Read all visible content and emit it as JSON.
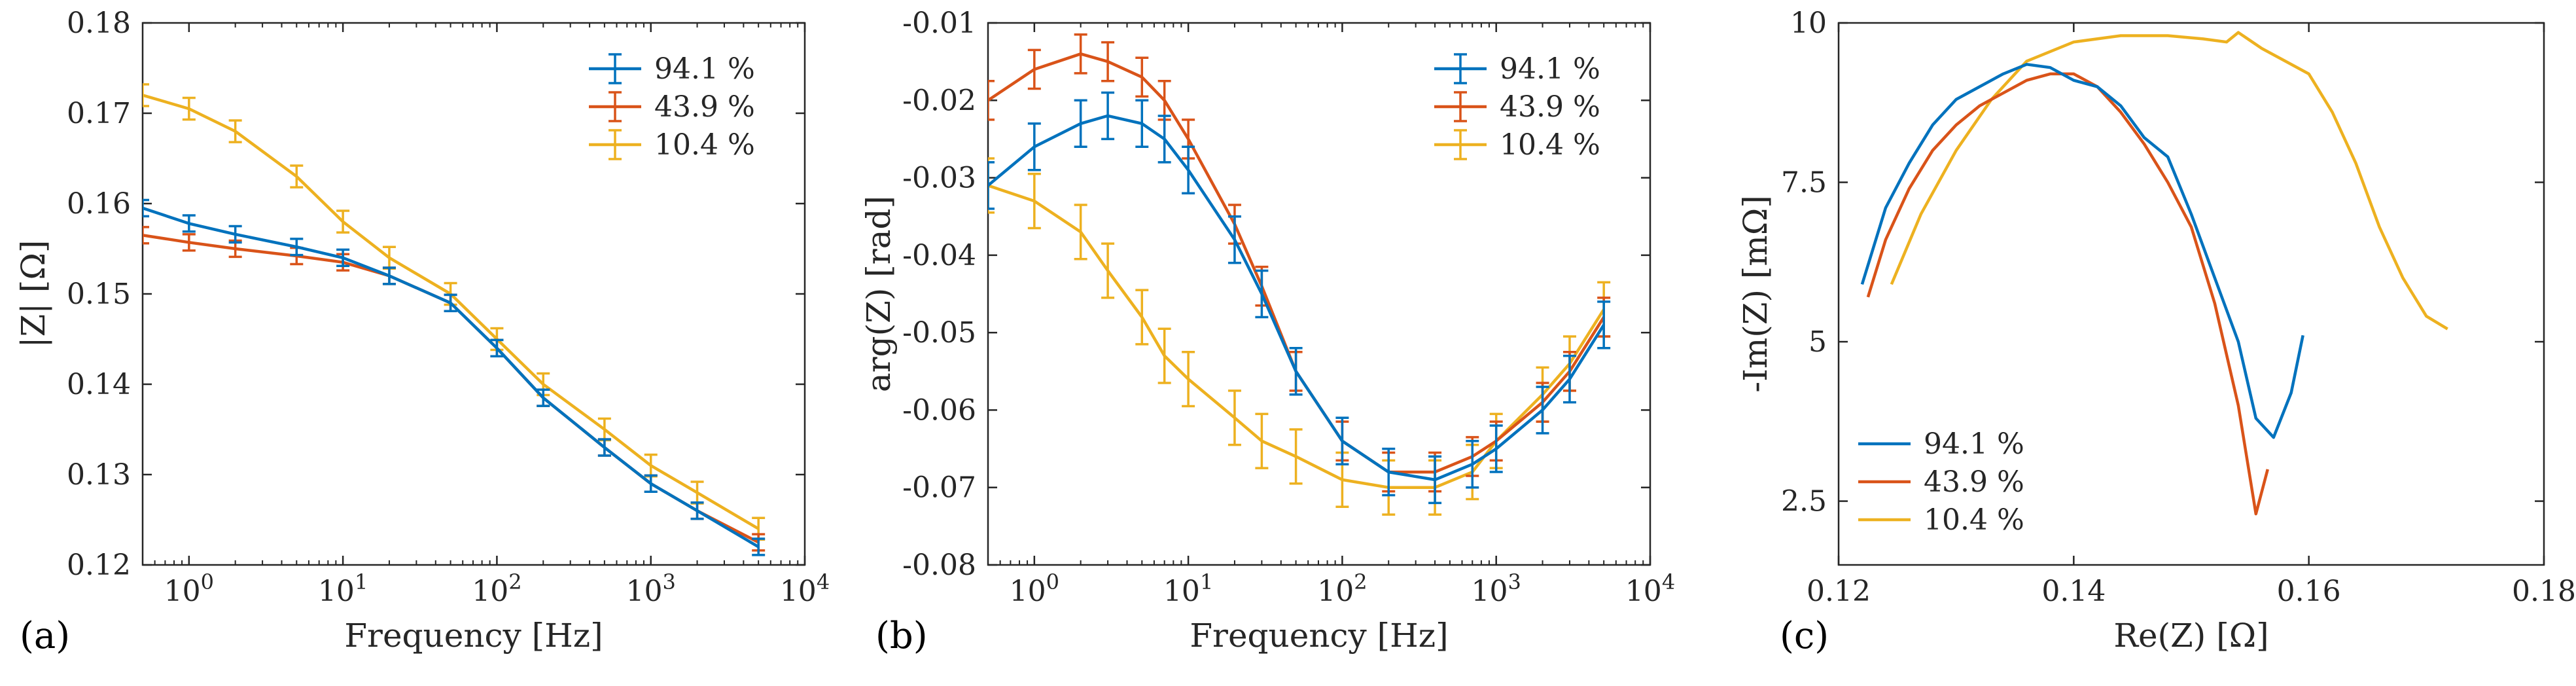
{
  "colors": {
    "blue": "#0072BD",
    "orange": "#D95319",
    "yellow": "#EDB120",
    "axis": "#262626"
  },
  "panels": [
    {
      "letter": "(a)",
      "xlabel": "Frequency [Hz]",
      "ylabel": "|Z| [Ω]"
    },
    {
      "letter": "(b)",
      "xlabel": "Frequency [Hz]",
      "ylabel": "arg(Z) [rad]"
    },
    {
      "letter": "(c)",
      "xlabel": "Re(Z) [Ω]",
      "ylabel": "-Im(Z) [mΩ]"
    }
  ],
  "legend_labels": [
    "94.1 %",
    "43.9 %",
    "10.4 %"
  ],
  "chart_data": [
    {
      "type": "line",
      "xscale": "log",
      "xlim": [
        0.5,
        10000
      ],
      "ylim": [
        0.12,
        0.18
      ],
      "xticks": [
        "10^0",
        "10^1",
        "10^2",
        "10^3",
        "10^4"
      ],
      "yticks": [
        "0.12",
        "0.13",
        "0.14",
        "0.15",
        "0.16",
        "0.17",
        "0.18"
      ],
      "xlabel": "Frequency [Hz]",
      "ylabel": "|Z| [Ω]",
      "legend": "top-right",
      "error_bars": true,
      "series": [
        {
          "name": "94.1 %",
          "x": [
            0.5,
            1,
            2,
            5,
            10,
            20,
            50,
            100,
            200,
            500,
            1000,
            2000,
            5000
          ],
          "y": [
            0.1595,
            0.1578,
            0.1566,
            0.1552,
            0.154,
            0.152,
            0.149,
            0.144,
            0.1385,
            0.133,
            0.129,
            0.126,
            0.122
          ],
          "err": 0.0009
        },
        {
          "name": "43.9 %",
          "x": [
            0.5,
            1,
            2,
            5,
            10,
            20,
            50,
            100,
            200,
            500,
            1000,
            2000,
            5000
          ],
          "y": [
            0.1565,
            0.1557,
            0.155,
            0.1542,
            0.1535,
            0.152,
            0.149,
            0.144,
            0.1385,
            0.133,
            0.129,
            0.126,
            0.1225
          ],
          "err": 0.0009
        },
        {
          "name": "10.4 %",
          "x": [
            0.5,
            1,
            2,
            5,
            10,
            20,
            50,
            100,
            200,
            500,
            1000,
            2000,
            5000
          ],
          "y": [
            0.172,
            0.1705,
            0.168,
            0.163,
            0.158,
            0.154,
            0.15,
            0.145,
            0.14,
            0.135,
            0.131,
            0.128,
            0.124
          ],
          "err": 0.0012
        }
      ]
    },
    {
      "type": "line",
      "xscale": "log",
      "xlim": [
        0.5,
        10000
      ],
      "ylim": [
        -0.08,
        -0.01
      ],
      "xticks": [
        "10^0",
        "10^1",
        "10^2",
        "10^3",
        "10^4"
      ],
      "yticks": [
        "-0.08",
        "-0.07",
        "-0.06",
        "-0.05",
        "-0.04",
        "-0.03",
        "-0.02",
        "-0.01"
      ],
      "xlabel": "Frequency [Hz]",
      "ylabel": "arg(Z) [rad]",
      "legend": "top-right",
      "error_bars": true,
      "series": [
        {
          "name": "94.1 %",
          "x": [
            0.5,
            1,
            2,
            3,
            5,
            7,
            10,
            20,
            30,
            50,
            100,
            200,
            400,
            700,
            1000,
            2000,
            3000,
            5000
          ],
          "y": [
            -0.031,
            -0.026,
            -0.023,
            -0.022,
            -0.023,
            -0.025,
            -0.029,
            -0.038,
            -0.045,
            -0.055,
            -0.064,
            -0.068,
            -0.069,
            -0.067,
            -0.065,
            -0.06,
            -0.056,
            -0.049
          ],
          "err": 0.003
        },
        {
          "name": "43.9 %",
          "x": [
            0.5,
            1,
            2,
            3,
            5,
            7,
            10,
            20,
            30,
            50,
            100,
            200,
            400,
            700,
            1000,
            2000,
            3000,
            5000
          ],
          "y": [
            -0.02,
            -0.016,
            -0.014,
            -0.015,
            -0.017,
            -0.02,
            -0.025,
            -0.036,
            -0.044,
            -0.055,
            -0.064,
            -0.068,
            -0.068,
            -0.066,
            -0.064,
            -0.059,
            -0.055,
            -0.048
          ],
          "err": 0.0025
        },
        {
          "name": "10.4 %",
          "x": [
            0.5,
            1,
            2,
            3,
            5,
            7,
            10,
            20,
            30,
            50,
            100,
            200,
            400,
            700,
            1000,
            2000,
            3000,
            5000
          ],
          "y": [
            -0.031,
            -0.033,
            -0.037,
            -0.042,
            -0.048,
            -0.053,
            -0.056,
            -0.061,
            -0.064,
            -0.066,
            -0.069,
            -0.07,
            -0.07,
            -0.068,
            -0.064,
            -0.058,
            -0.054,
            -0.047
          ],
          "err": 0.0035
        }
      ]
    },
    {
      "type": "line",
      "xlim": [
        0.12,
        0.18
      ],
      "ylim": [
        1.5,
        10
      ],
      "xticks": [
        "0.12",
        "0.14",
        "0.16",
        "0.18"
      ],
      "yticks": [
        "2.5",
        "5",
        "7.5",
        "10"
      ],
      "xlabel": "Re(Z) [Ω]",
      "ylabel": "-Im(Z) [mΩ]",
      "legend": "bottom-left",
      "series": [
        {
          "name": "94.1 %",
          "x": [
            0.122,
            0.124,
            0.126,
            0.128,
            0.13,
            0.132,
            0.134,
            0.136,
            0.138,
            0.14,
            0.142,
            0.144,
            0.146,
            0.148,
            0.15,
            0.152,
            0.154,
            0.1555,
            0.157,
            0.1585,
            0.1595
          ],
          "y": [
            5.9,
            7.1,
            7.8,
            8.4,
            8.8,
            9.0,
            9.2,
            9.35,
            9.3,
            9.1,
            9.0,
            8.7,
            8.2,
            7.9,
            7.0,
            6.0,
            5.0,
            3.8,
            3.5,
            4.2,
            5.1
          ]
        },
        {
          "name": "43.9 %",
          "x": [
            0.1225,
            0.124,
            0.126,
            0.128,
            0.13,
            0.132,
            0.134,
            0.136,
            0.138,
            0.14,
            0.142,
            0.144,
            0.146,
            0.148,
            0.15,
            0.152,
            0.154,
            0.1555,
            0.1565
          ],
          "y": [
            5.7,
            6.6,
            7.4,
            8.0,
            8.4,
            8.7,
            8.9,
            9.1,
            9.2,
            9.2,
            9.0,
            8.6,
            8.1,
            7.5,
            6.8,
            5.6,
            4.0,
            2.3,
            3.0
          ]
        },
        {
          "name": "10.4 %",
          "x": [
            0.1245,
            0.127,
            0.13,
            0.133,
            0.136,
            0.14,
            0.144,
            0.148,
            0.151,
            0.153,
            0.154,
            0.156,
            0.158,
            0.16,
            0.162,
            0.164,
            0.166,
            0.168,
            0.17,
            0.1718
          ],
          "y": [
            5.9,
            7.0,
            8.0,
            8.8,
            9.4,
            9.7,
            9.8,
            9.8,
            9.75,
            9.7,
            9.85,
            9.6,
            9.4,
            9.2,
            8.6,
            7.8,
            6.8,
            6.0,
            5.4,
            5.2
          ]
        }
      ]
    }
  ]
}
